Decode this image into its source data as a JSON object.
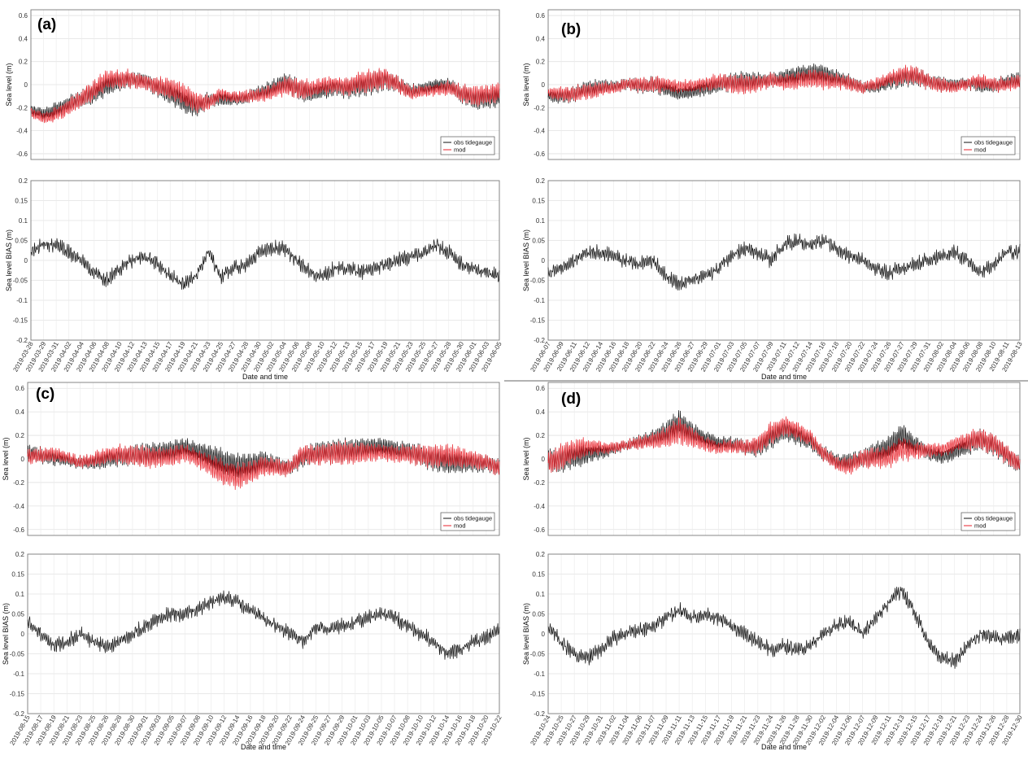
{
  "chart_data": [
    {
      "panel": "(a)",
      "type": "line",
      "ylabel_top": "Sea level (m)",
      "ylabel_bottom": "Sea level BIAS (m)",
      "xlabel": "Date and time",
      "ylim_top": [
        -0.65,
        0.65
      ],
      "ylim_bottom": [
        -0.2,
        0.2
      ],
      "yticks_top": [
        "0.6",
        "0.4",
        "0.2",
        "0",
        "-0.2",
        "-0.4",
        "-0.6"
      ],
      "yticks_bottom": [
        "0.2",
        "0.15",
        "0.1",
        "0.05",
        "0",
        "-0.05",
        "-0.1",
        "-0.15",
        "-0.2"
      ],
      "legend": [
        "obs tidegauge",
        "mod"
      ],
      "x": [
        "2019-03-28",
        "2019-03-29",
        "2019-03-31",
        "2019-04-02",
        "2019-04-04",
        "2019-04-06",
        "2019-04-08",
        "2019-04-10",
        "2019-04-12",
        "2019-04-13",
        "2019-04-15",
        "2019-04-17",
        "2019-04-19",
        "2019-04-21",
        "2019-04-23",
        "2019-04-25",
        "2019-04-27",
        "2019-04-28",
        "2019-04-30",
        "2019-05-02",
        "2019-05-04",
        "2019-05-06",
        "2019-05-08",
        "2019-05-10",
        "2019-05-12",
        "2019-05-13",
        "2019-05-15",
        "2019-05-17",
        "2019-05-19",
        "2019-05-21",
        "2019-05-23",
        "2019-05-25",
        "2019-05-27",
        "2019-05-28",
        "2019-05-30",
        "2019-06-01",
        "2019-06-03",
        "2019-06-05"
      ],
      "obs_mean": [
        -0.22,
        -0.25,
        -0.22,
        -0.17,
        -0.12,
        -0.07,
        -0.01,
        0.03,
        0.05,
        0.03,
        -0.02,
        -0.08,
        -0.14,
        -0.19,
        -0.14,
        -0.12,
        -0.13,
        -0.11,
        -0.07,
        -0.04,
        0.02,
        -0.03,
        -0.07,
        -0.05,
        -0.02,
        -0.04,
        -0.01,
        0.01,
        0.05,
        0.0,
        -0.06,
        -0.04,
        0.0,
        -0.01,
        -0.08,
        -0.12,
        -0.12,
        -0.1
      ],
      "obs_amp": [
        0.04,
        0.05,
        0.06,
        0.07,
        0.08,
        0.09,
        0.09,
        0.08,
        0.07,
        0.07,
        0.08,
        0.09,
        0.1,
        0.09,
        0.07,
        0.06,
        0.05,
        0.05,
        0.06,
        0.07,
        0.08,
        0.09,
        0.08,
        0.07,
        0.07,
        0.08,
        0.09,
        0.1,
        0.09,
        0.07,
        0.06,
        0.05,
        0.05,
        0.06,
        0.08,
        0.09,
        0.09,
        0.08
      ],
      "bias": [
        0.02,
        0.04,
        0.04,
        0.02,
        0.0,
        -0.03,
        -0.05,
        -0.02,
        0.0,
        0.01,
        -0.01,
        -0.04,
        -0.06,
        -0.04,
        0.02,
        -0.04,
        -0.02,
        -0.01,
        0.02,
        0.03,
        0.03,
        0.0,
        -0.03,
        -0.04,
        -0.02,
        -0.02,
        -0.03,
        -0.02,
        -0.01,
        0.0,
        0.01,
        0.02,
        0.04,
        0.02,
        -0.01,
        -0.02,
        -0.03,
        -0.04
      ]
    },
    {
      "panel": "(b)",
      "type": "line",
      "ylabel_top": "Sea level (m)",
      "ylabel_bottom": "Sea level BIAS (m)",
      "xlabel": "Date and time",
      "ylim_top": [
        -0.65,
        0.65
      ],
      "ylim_bottom": [
        -0.2,
        0.2
      ],
      "yticks_top": [
        "0.6",
        "0.4",
        "0.2",
        "0",
        "-0.2",
        "-0.4",
        "-0.6"
      ],
      "yticks_bottom": [
        "0.2",
        "0.15",
        "0.1",
        "0.05",
        "0",
        "-0.05",
        "-0.1",
        "-0.15",
        "-0.2"
      ],
      "legend": [
        "obs tidegauge",
        "mod"
      ],
      "x": [
        "2019-06-07",
        "2019-06-09",
        "2019-06-11",
        "2019-06-12",
        "2019-06-14",
        "2019-06-16",
        "2019-06-18",
        "2019-06-20",
        "2019-06-22",
        "2019-06-24",
        "2019-06-26",
        "2019-06-27",
        "2019-06-29",
        "2019-07-01",
        "2019-07-03",
        "2019-07-05",
        "2019-07-07",
        "2019-07-09",
        "2019-07-11",
        "2019-07-12",
        "2019-07-14",
        "2019-07-16",
        "2019-07-18",
        "2019-07-20",
        "2019-07-22",
        "2019-07-24",
        "2019-07-26",
        "2019-07-27",
        "2019-07-29",
        "2019-07-31",
        "2019-08-02",
        "2019-08-04",
        "2019-08-06",
        "2019-08-08",
        "2019-08-10",
        "2019-08-11",
        "2019-08-13"
      ],
      "obs_mean": [
        -0.1,
        -0.1,
        -0.08,
        -0.04,
        -0.02,
        -0.02,
        0.0,
        -0.01,
        0.0,
        -0.04,
        -0.08,
        -0.06,
        -0.03,
        0.0,
        0.02,
        0.03,
        0.03,
        0.04,
        0.06,
        0.08,
        0.1,
        0.09,
        0.06,
        0.02,
        -0.02,
        -0.02,
        0.02,
        0.06,
        0.07,
        0.03,
        0.0,
        0.0,
        0.01,
        0.0,
        -0.01,
        0.02,
        0.05
      ],
      "obs_amp": [
        0.05,
        0.06,
        0.07,
        0.07,
        0.06,
        0.05,
        0.05,
        0.06,
        0.07,
        0.06,
        0.05,
        0.05,
        0.06,
        0.07,
        0.08,
        0.08,
        0.07,
        0.06,
        0.06,
        0.07,
        0.08,
        0.08,
        0.07,
        0.06,
        0.05,
        0.05,
        0.06,
        0.08,
        0.08,
        0.07,
        0.06,
        0.05,
        0.05,
        0.06,
        0.06,
        0.06,
        0.06
      ],
      "bias": [
        -0.03,
        -0.02,
        0.0,
        0.02,
        0.02,
        0.01,
        0.0,
        -0.01,
        0.0,
        -0.04,
        -0.06,
        -0.05,
        -0.04,
        -0.02,
        0.01,
        0.03,
        0.02,
        0.0,
        0.04,
        0.05,
        0.04,
        0.05,
        0.03,
        0.01,
        0.0,
        -0.02,
        -0.03,
        -0.02,
        -0.01,
        0.0,
        0.01,
        0.02,
        0.0,
        -0.03,
        -0.01,
        0.02,
        0.02
      ]
    },
    {
      "panel": "(c)",
      "type": "line",
      "ylabel_top": "Sea level (m)",
      "ylabel_bottom": "Sea level BIAS (m)",
      "xlabel": "Date and time",
      "ylim_top": [
        -0.65,
        0.65
      ],
      "ylim_bottom": [
        -0.2,
        0.2
      ],
      "yticks_top": [
        "0.6",
        "0.4",
        "0.2",
        "0",
        "-0.2",
        "-0.4",
        "-0.6"
      ],
      "yticks_bottom": [
        "0.2",
        "0.15",
        "0.1",
        "0.05",
        "0",
        "-0.05",
        "-0.1",
        "-0.15",
        "-0.2"
      ],
      "legend": [
        "obs tidegauge",
        "mod"
      ],
      "x": [
        "2019-08-15",
        "2019-08-17",
        "2019-08-19",
        "2019-08-21",
        "2019-08-23",
        "2019-08-25",
        "2019-08-26",
        "2019-08-28",
        "2019-08-30",
        "2019-09-01",
        "2019-09-03",
        "2019-09-05",
        "2019-09-07",
        "2019-09-08",
        "2019-09-10",
        "2019-09-12",
        "2019-09-14",
        "2019-09-16",
        "2019-09-18",
        "2019-09-20",
        "2019-09-22",
        "2019-09-24",
        "2019-09-25",
        "2019-09-27",
        "2019-09-29",
        "2019-10-01",
        "2019-10-03",
        "2019-10-05",
        "2019-10-07",
        "2019-10-08",
        "2019-10-10",
        "2019-10-12",
        "2019-10-14",
        "2019-10-16",
        "2019-10-18",
        "2019-10-20",
        "2019-10-22"
      ],
      "obs_mean": [
        0.05,
        0.03,
        0.01,
        -0.01,
        -0.03,
        -0.03,
        0.0,
        0.02,
        0.03,
        0.04,
        0.05,
        0.07,
        0.1,
        0.06,
        0.02,
        -0.03,
        -0.07,
        -0.05,
        -0.02,
        -0.05,
        -0.08,
        0.02,
        0.05,
        0.06,
        0.07,
        0.08,
        0.1,
        0.1,
        0.08,
        0.06,
        0.03,
        0.0,
        -0.02,
        -0.03,
        -0.03,
        -0.04,
        -0.07
      ],
      "obs_amp": [
        0.06,
        0.07,
        0.06,
        0.05,
        0.05,
        0.06,
        0.07,
        0.08,
        0.09,
        0.1,
        0.09,
        0.08,
        0.07,
        0.08,
        0.1,
        0.11,
        0.11,
        0.1,
        0.08,
        0.07,
        0.07,
        0.08,
        0.09,
        0.1,
        0.1,
        0.09,
        0.08,
        0.07,
        0.07,
        0.08,
        0.09,
        0.1,
        0.1,
        0.09,
        0.08,
        0.07,
        0.07
      ],
      "bias": [
        0.03,
        0.0,
        -0.03,
        -0.02,
        0.0,
        -0.02,
        -0.03,
        -0.02,
        0.0,
        0.02,
        0.04,
        0.05,
        0.05,
        0.06,
        0.08,
        0.09,
        0.08,
        0.06,
        0.04,
        0.02,
        0.0,
        -0.02,
        0.02,
        0.01,
        0.02,
        0.03,
        0.04,
        0.05,
        0.04,
        0.02,
        0.0,
        -0.02,
        -0.05,
        -0.04,
        -0.02,
        -0.01,
        0.01
      ]
    },
    {
      "panel": "(d)",
      "type": "line",
      "ylabel_top": "Sea level (m)",
      "ylabel_bottom": "Sea level BIAS (m)",
      "xlabel": "Date and time",
      "ylim_top": [
        -0.65,
        0.65
      ],
      "ylim_bottom": [
        -0.2,
        0.2
      ],
      "yticks_top": [
        "0.6",
        "0.4",
        "0.2",
        "0",
        "-0.2",
        "-0.4",
        "-0.6"
      ],
      "yticks_bottom": [
        "0.2",
        "0.15",
        "0.1",
        "0.05",
        "0",
        "-0.05",
        "-0.1",
        "-0.15",
        "-0.2"
      ],
      "legend": [
        "obs tidegauge",
        "mod"
      ],
      "x": [
        "2019-10-24",
        "2019-10-25",
        "2019-10-27",
        "2019-10-29",
        "2019-10-31",
        "2019-11-02",
        "2019-11-04",
        "2019-11-06",
        "2019-11-07",
        "2019-11-09",
        "2019-11-11",
        "2019-11-13",
        "2019-11-15",
        "2019-11-17",
        "2019-11-19",
        "2019-11-21",
        "2019-11-23",
        "2019-11-24",
        "2019-11-26",
        "2019-11-28",
        "2019-11-30",
        "2019-12-02",
        "2019-12-04",
        "2019-12-06",
        "2019-12-07",
        "2019-12-09",
        "2019-12-11",
        "2019-12-13",
        "2019-12-15",
        "2019-12-17",
        "2019-12-19",
        "2019-12-21",
        "2019-12-23",
        "2019-12-24",
        "2019-12-26",
        "2019-12-28",
        "2019-12-30"
      ],
      "obs_mean": [
        -0.02,
        0.0,
        0.02,
        0.04,
        0.06,
        0.08,
        0.12,
        0.15,
        0.18,
        0.22,
        0.3,
        0.22,
        0.17,
        0.14,
        0.13,
        0.1,
        0.1,
        0.18,
        0.25,
        0.2,
        0.15,
        0.05,
        -0.02,
        -0.03,
        0.0,
        0.05,
        0.1,
        0.2,
        0.12,
        0.06,
        0.02,
        0.05,
        0.12,
        0.17,
        0.12,
        0.03,
        -0.05
      ],
      "obs_amp": [
        0.1,
        0.11,
        0.1,
        0.08,
        0.05,
        0.04,
        0.04,
        0.05,
        0.07,
        0.09,
        0.12,
        0.09,
        0.06,
        0.05,
        0.05,
        0.06,
        0.08,
        0.09,
        0.09,
        0.08,
        0.07,
        0.06,
        0.06,
        0.07,
        0.08,
        0.09,
        0.1,
        0.1,
        0.08,
        0.06,
        0.05,
        0.06,
        0.08,
        0.09,
        0.09,
        0.08,
        0.07
      ],
      "bias": [
        0.02,
        -0.02,
        -0.05,
        -0.06,
        -0.04,
        -0.01,
        0.0,
        0.01,
        0.02,
        0.04,
        0.06,
        0.04,
        0.05,
        0.04,
        0.02,
        0.0,
        -0.02,
        -0.04,
        -0.03,
        -0.04,
        -0.03,
        0.0,
        0.02,
        0.03,
        0.0,
        0.04,
        0.08,
        0.11,
        0.05,
        -0.02,
        -0.06,
        -0.07,
        -0.03,
        0.0,
        -0.01,
        -0.01,
        0.0
      ]
    }
  ]
}
